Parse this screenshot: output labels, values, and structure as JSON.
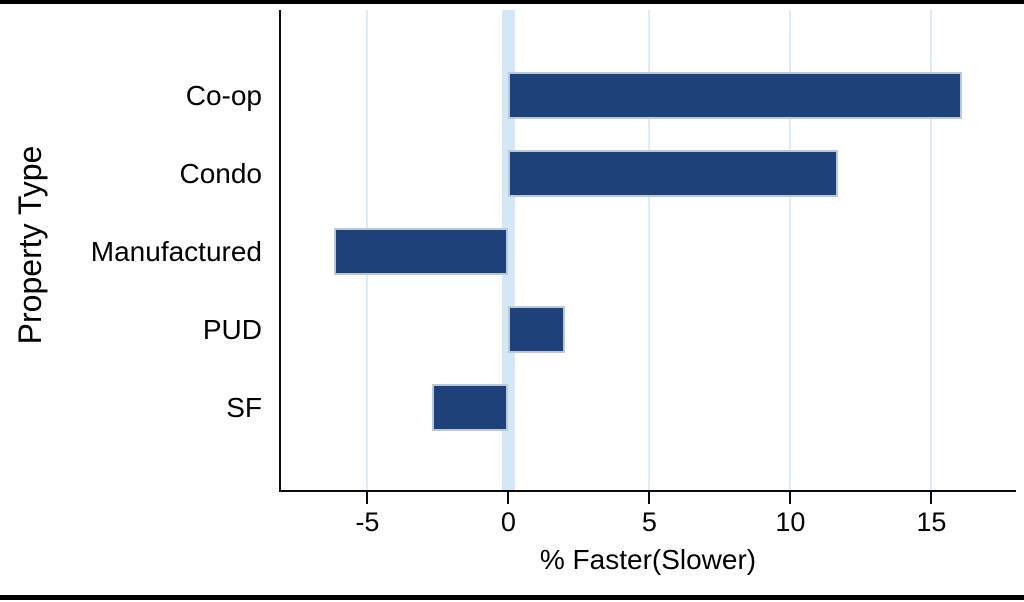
{
  "chart_data": {
    "type": "bar",
    "orientation": "horizontal",
    "title": "",
    "categories": [
      "Co-op",
      "Condo",
      "Manufactured",
      "PUD",
      "SF"
    ],
    "values": [
      16.1,
      11.7,
      -6.2,
      2.0,
      -2.7
    ],
    "xlabel": "% Faster(Slower)",
    "ylabel": "Property Type",
    "xlim": [
      -8.1,
      18.0
    ],
    "xticks": [
      -5,
      0,
      5,
      10,
      15
    ],
    "grid": "vertical gridlines at each x tick; wide highlight band at zero",
    "legend": "none",
    "colors": {
      "bar_fill": "#1e4179",
      "bar_border": "#b9c9dd",
      "gridline": "#ddecf9",
      "zero_band": "#d5e6f5",
      "axis": "#0a0a0a",
      "frame": "#000000",
      "background": "#ffffff"
    }
  }
}
